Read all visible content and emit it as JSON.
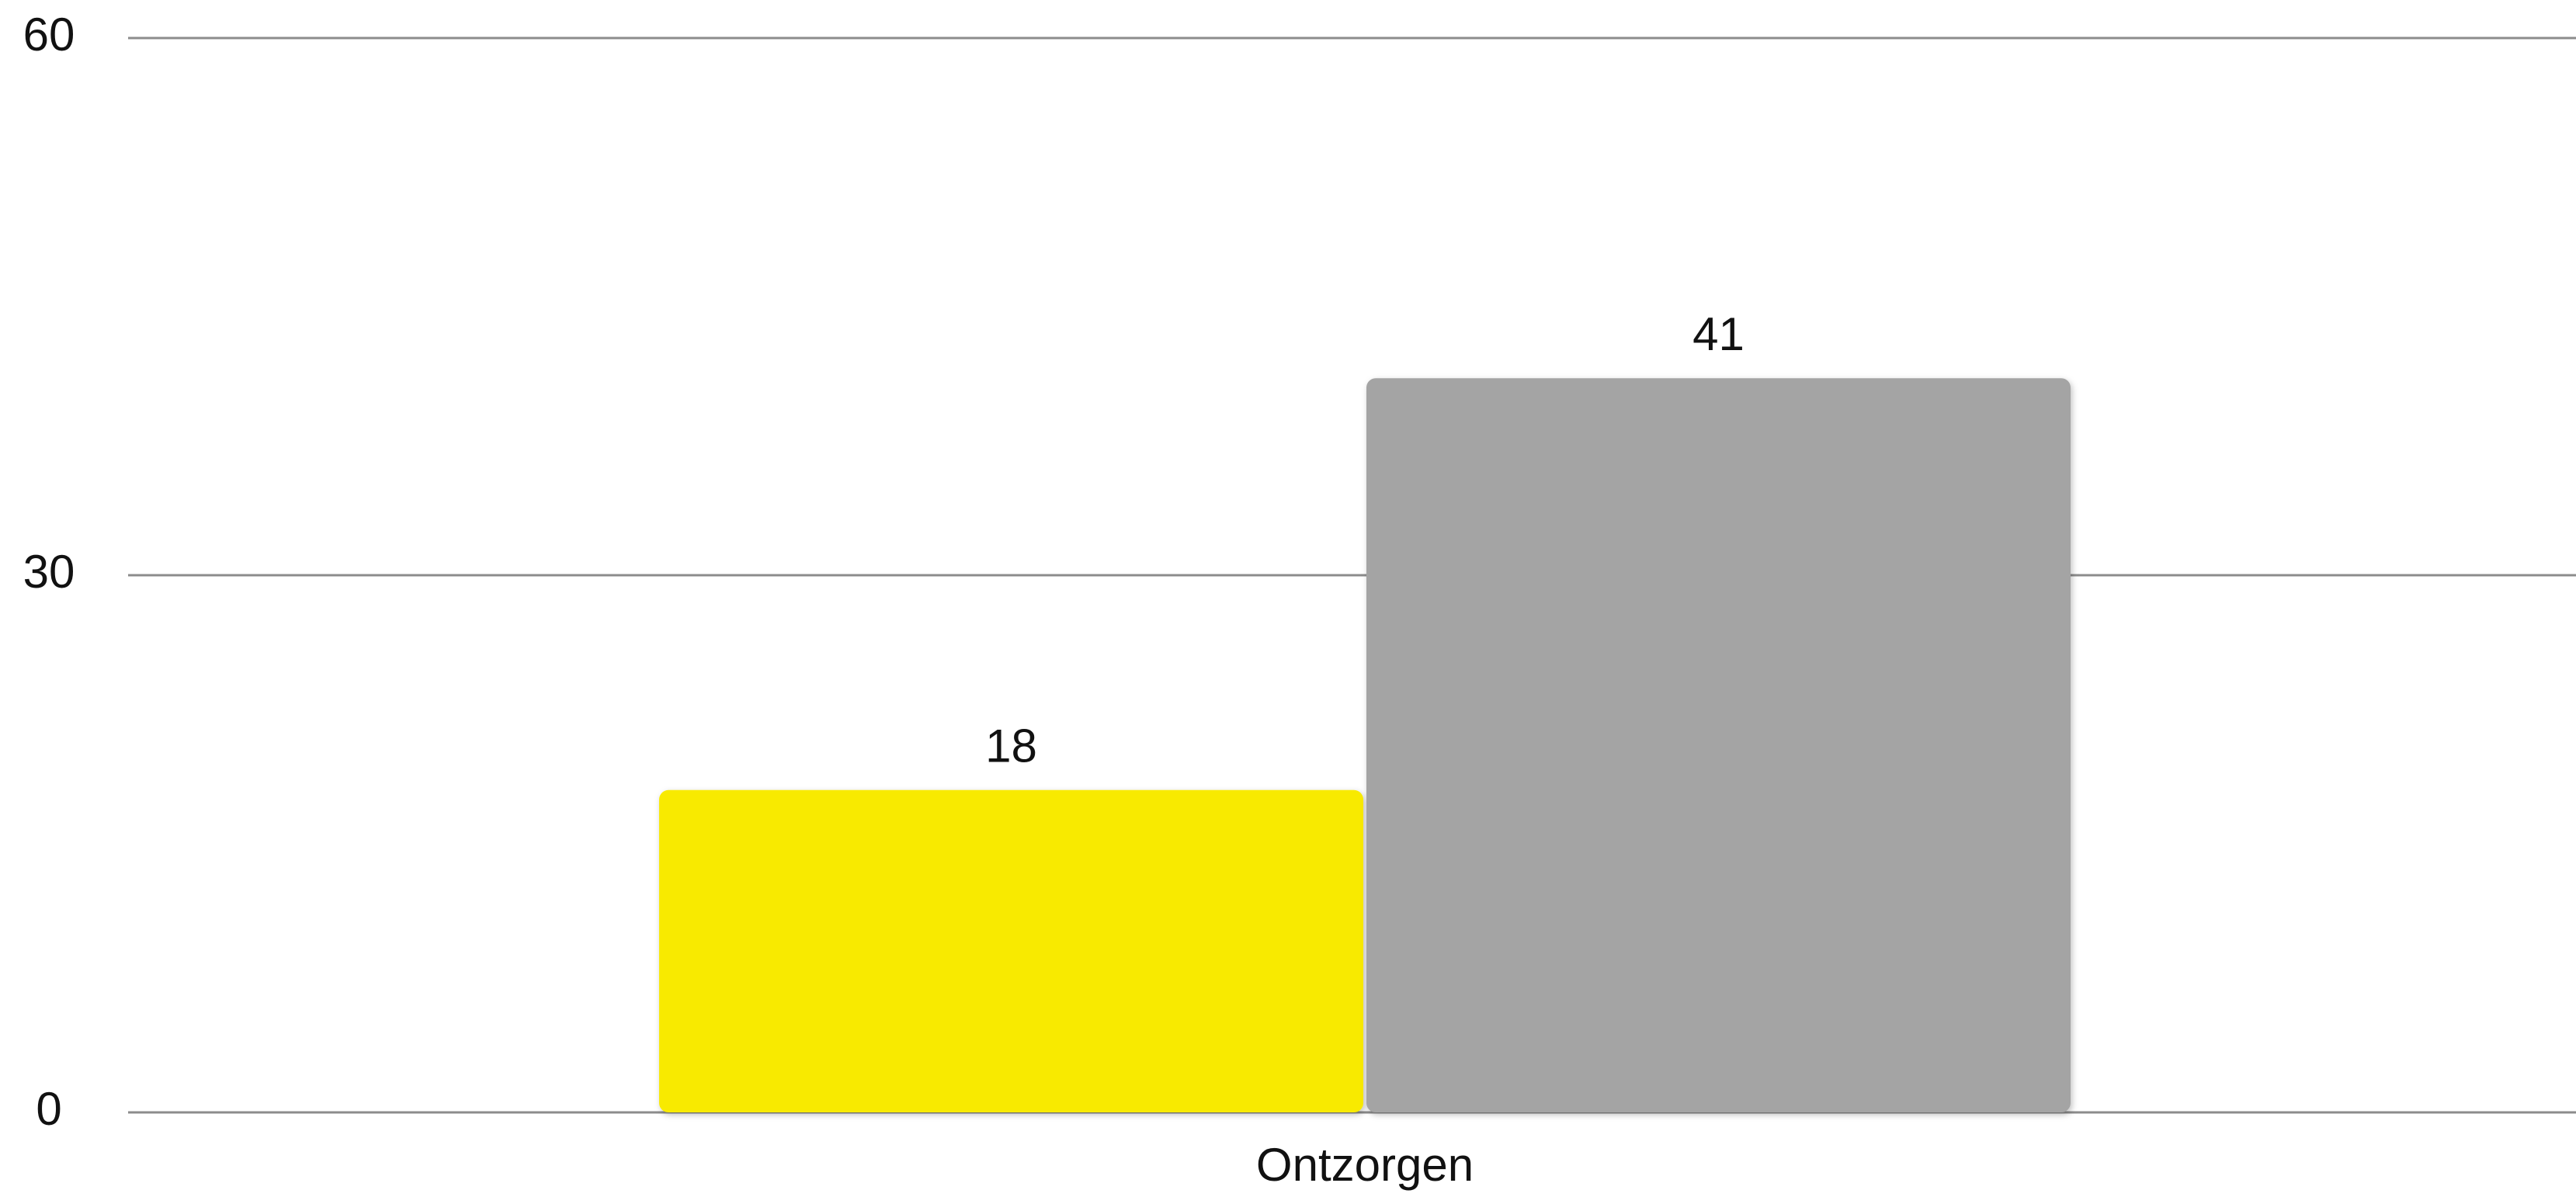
{
  "chart_data": {
    "type": "bar",
    "categories": [
      "Ontzorgen"
    ],
    "series": [
      {
        "color": "#f8ea00",
        "values": [
          18
        ]
      },
      {
        "color": "#a4a4a4",
        "values": [
          41
        ]
      }
    ],
    "ylim": [
      0,
      60
    ],
    "yticks": [
      0,
      30,
      60
    ],
    "grid": true
  }
}
